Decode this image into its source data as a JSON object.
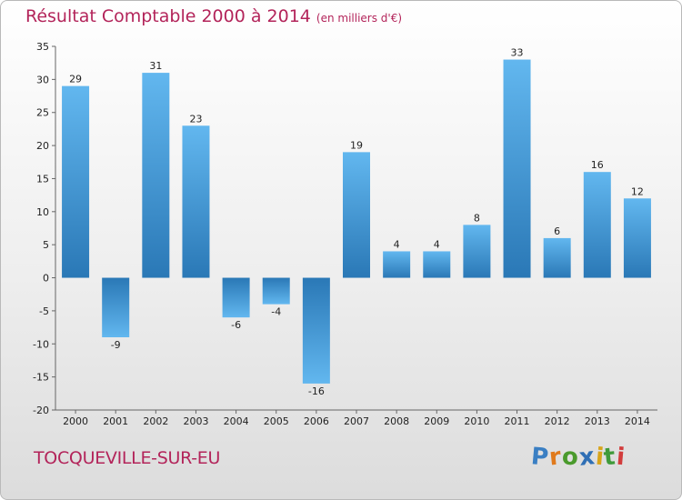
{
  "title": "Résultat Comptable 2000 à 2014",
  "unit": "(en milliers d'€)",
  "commune": "TOCQUEVILLE-SUR-EU",
  "logo": {
    "text": "Proxiti",
    "letters": [
      {
        "ch": "P",
        "color": "#3a7fc3"
      },
      {
        "ch": "r",
        "color": "#e07a1c"
      },
      {
        "ch": "o",
        "color": "#4a9a2c"
      },
      {
        "ch": "x",
        "color": "#2f6fb5"
      },
      {
        "ch": "i",
        "color": "#d8a41a"
      },
      {
        "ch": "t",
        "color": "#3f9a3a"
      },
      {
        "ch": "i",
        "color": "#d23c3c"
      }
    ]
  },
  "colors": {
    "title": "#b3245a",
    "bar_light": "#5fb3ec",
    "bar_dark": "#2a7ab8"
  },
  "chart_data": {
    "type": "bar",
    "categories": [
      "2000",
      "2001",
      "2002",
      "2003",
      "2004",
      "2005",
      "2006",
      "2007",
      "2008",
      "2009",
      "2010",
      "2011",
      "2012",
      "2013",
      "2014"
    ],
    "values": [
      29,
      -9,
      31,
      23,
      -6,
      -4,
      -16,
      19,
      4,
      4,
      8,
      33,
      6,
      16,
      12
    ],
    "ylim": [
      -20,
      35
    ],
    "yticks": [
      35,
      30,
      25,
      20,
      15,
      10,
      5,
      0,
      -5,
      -10,
      -15,
      -20
    ],
    "grid": false,
    "legend": "none"
  }
}
